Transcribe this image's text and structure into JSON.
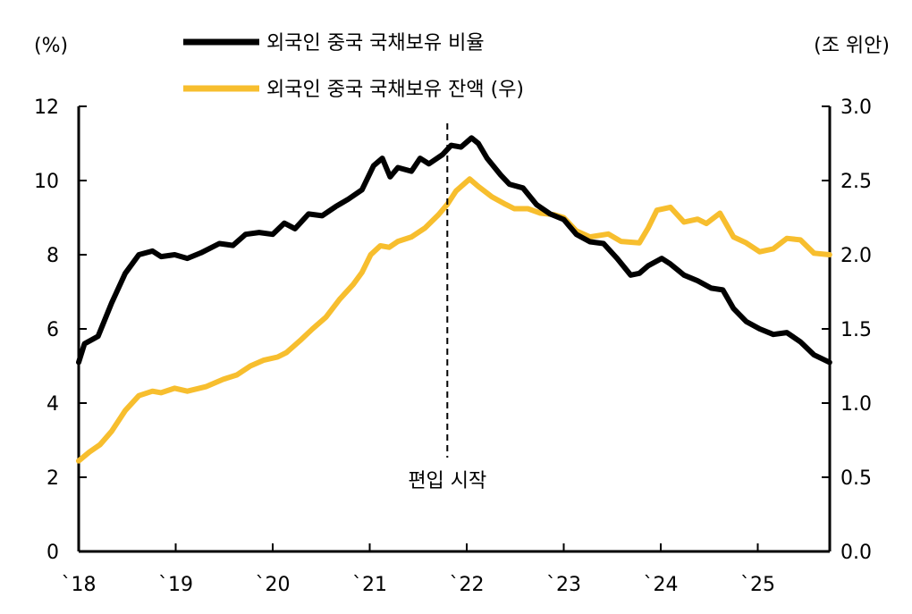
{
  "chart_data": {
    "type": "line",
    "left_axis": {
      "label": "(%)",
      "range": [
        0,
        12
      ],
      "ticks": [
        "0",
        "2",
        "4",
        "6",
        "8",
        "10",
        "12"
      ]
    },
    "right_axis": {
      "label": "(조 위안)",
      "range": [
        0,
        3.0
      ],
      "ticks": [
        "0.0",
        "0.5",
        "1.0",
        "1.5",
        "2.0",
        "2.5",
        "3.0"
      ]
    },
    "x_axis": {
      "range": [
        2018,
        2025.75
      ],
      "ticks": [
        {
          "v": 2018,
          "label": "`18"
        },
        {
          "v": 2019,
          "label": "`19"
        },
        {
          "v": 2020,
          "label": "`20"
        },
        {
          "v": 2021,
          "label": "`21"
        },
        {
          "v": 2022,
          "label": "`22"
        },
        {
          "v": 2023,
          "label": "`23"
        },
        {
          "v": 2024,
          "label": "`24"
        },
        {
          "v": 2025,
          "label": "`25"
        }
      ]
    },
    "grid": false,
    "legend_placement": "top",
    "annotation": {
      "x": 2021.8,
      "label": "편입 시작",
      "style": "dashed-vertical"
    },
    "series": [
      {
        "name": "외국인 중국 국채보유 비율",
        "axis": "left",
        "color": "#000000",
        "x": [
          2018.0,
          2018.06,
          2018.2,
          2018.34,
          2018.48,
          2018.62,
          2018.76,
          2018.85,
          2018.99,
          2019.12,
          2019.26,
          2019.45,
          2019.59,
          2019.72,
          2019.86,
          2020.0,
          2020.12,
          2020.23,
          2020.37,
          2020.51,
          2020.65,
          2020.78,
          2020.92,
          2021.04,
          2021.13,
          2021.21,
          2021.29,
          2021.43,
          2021.52,
          2021.61,
          2021.75,
          2021.84,
          2021.94,
          2022.05,
          2022.12,
          2022.21,
          2022.35,
          2022.44,
          2022.58,
          2022.72,
          2022.86,
          2023.0,
          2023.13,
          2023.27,
          2023.41,
          2023.55,
          2023.69,
          2023.78,
          2023.87,
          2024.01,
          2024.1,
          2024.24,
          2024.38,
          2024.52,
          2024.64,
          2024.75,
          2024.88,
          2025.02,
          2025.16,
          2025.3,
          2025.44,
          2025.58,
          2025.74
        ],
        "values": [
          5.1,
          5.6,
          5.8,
          6.7,
          7.5,
          8.0,
          8.1,
          7.95,
          8.0,
          7.9,
          8.05,
          8.3,
          8.25,
          8.55,
          8.6,
          8.55,
          8.85,
          8.7,
          9.1,
          9.05,
          9.3,
          9.5,
          9.75,
          10.4,
          10.6,
          10.1,
          10.35,
          10.25,
          10.6,
          10.45,
          10.7,
          10.95,
          10.9,
          11.15,
          11.0,
          10.6,
          10.15,
          9.9,
          9.8,
          9.35,
          9.1,
          8.95,
          8.55,
          8.35,
          8.3,
          7.9,
          7.45,
          7.5,
          7.7,
          7.9,
          7.75,
          7.45,
          7.3,
          7.1,
          7.05,
          6.55,
          6.2,
          6.0,
          5.85,
          5.9,
          5.65,
          5.3,
          5.1
        ]
      },
      {
        "name": "외국인 중국 국채보유 잔액 (우)",
        "axis": "right",
        "color": "#F7BE2E",
        "x": [
          2018.0,
          2018.11,
          2018.22,
          2018.34,
          2018.48,
          2018.62,
          2018.76,
          2018.85,
          2018.99,
          2019.12,
          2019.31,
          2019.49,
          2019.63,
          2019.77,
          2019.91,
          2020.05,
          2020.14,
          2020.28,
          2020.41,
          2020.55,
          2020.69,
          2020.83,
          2020.92,
          2021.01,
          2021.11,
          2021.2,
          2021.29,
          2021.43,
          2021.57,
          2021.71,
          2021.8,
          2021.89,
          2022.03,
          2022.12,
          2022.26,
          2022.4,
          2022.49,
          2022.63,
          2022.76,
          2022.9,
          2023.0,
          2023.13,
          2023.27,
          2023.46,
          2023.59,
          2023.78,
          2023.87,
          2023.96,
          2024.1,
          2024.24,
          2024.38,
          2024.47,
          2024.61,
          2024.75,
          2024.88,
          2025.02,
          2025.16,
          2025.3,
          2025.44,
          2025.58,
          2025.74
        ],
        "values": [
          0.61,
          0.67,
          0.72,
          0.81,
          0.95,
          1.05,
          1.08,
          1.07,
          1.1,
          1.08,
          1.11,
          1.16,
          1.19,
          1.25,
          1.29,
          1.31,
          1.34,
          1.42,
          1.5,
          1.58,
          1.7,
          1.8,
          1.88,
          2.0,
          2.06,
          2.05,
          2.09,
          2.12,
          2.18,
          2.27,
          2.34,
          2.43,
          2.51,
          2.46,
          2.39,
          2.34,
          2.31,
          2.31,
          2.28,
          2.27,
          2.25,
          2.16,
          2.12,
          2.14,
          2.09,
          2.08,
          2.18,
          2.3,
          2.32,
          2.22,
          2.24,
          2.21,
          2.28,
          2.12,
          2.08,
          2.02,
          2.04,
          2.11,
          2.1,
          2.01,
          2.0
        ]
      }
    ]
  }
}
